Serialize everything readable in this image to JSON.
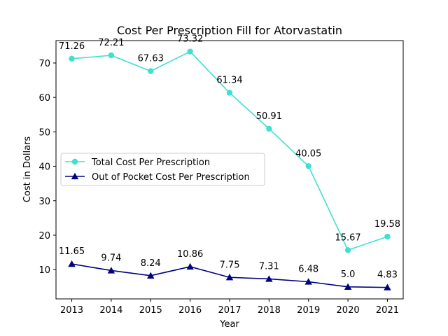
{
  "chart_data": {
    "type": "line",
    "title": "Cost Per Prescription Fill for Atorvastatin",
    "xlabel": "Year",
    "ylabel": "Cost in Dollars",
    "x": [
      2013,
      2014,
      2015,
      2016,
      2017,
      2018,
      2019,
      2020,
      2021
    ],
    "x_tick_labels": [
      "2013",
      "2014",
      "2015",
      "2016",
      "2017",
      "2018",
      "2019",
      "2020",
      "2021"
    ],
    "y_ticks": [
      10,
      20,
      30,
      40,
      50,
      60,
      70
    ],
    "y_tick_labels": [
      "10",
      "20",
      "30",
      "40",
      "50",
      "60",
      "70"
    ],
    "xlim": [
      2012.6,
      2021.4
    ],
    "ylim": [
      1.5,
      76.5
    ],
    "grid": false,
    "legend_position": "center-left",
    "series": [
      {
        "name": "Total Cost Per Prescription",
        "color": "#40e0d0",
        "marker": "circle",
        "values": [
          71.26,
          72.21,
          67.63,
          73.32,
          61.34,
          50.91,
          40.05,
          15.67,
          19.58
        ],
        "labels": [
          "71.26",
          "72.21",
          "67.63",
          "73.32",
          "61.34",
          "50.91",
          "40.05",
          "15.67",
          "19.58"
        ]
      },
      {
        "name": "Out of Pocket Cost Per Prescription",
        "color": "#000080",
        "marker": "triangle",
        "values": [
          11.65,
          9.74,
          8.24,
          10.86,
          7.75,
          7.31,
          6.48,
          5.0,
          4.83
        ],
        "labels": [
          "11.65",
          "9.74",
          "8.24",
          "10.86",
          "7.75",
          "7.31",
          "6.48",
          "5.0",
          "4.83"
        ]
      }
    ]
  }
}
